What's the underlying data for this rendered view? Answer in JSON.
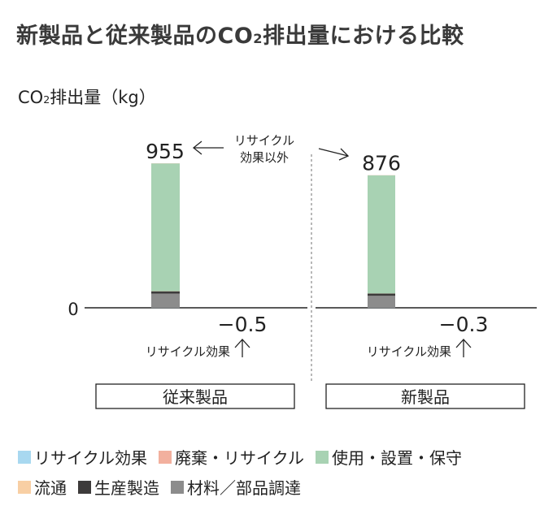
{
  "title_pre": "新製品と従来製品のCO",
  "title_sub": "2",
  "title_post": "排出量における比較",
  "unit_pre": "CO",
  "unit_sub": "2",
  "unit_post": "排出量（kg）",
  "colors": {
    "recycle": "#a8d8f0",
    "disposal": "#f2b09e",
    "use": "#a8d2b3",
    "distribution": "#f8cfa4",
    "production": "#3d3b3b",
    "materials": "#8c8c8c"
  },
  "annotations": {
    "recycle_top": [
      "リサイクル",
      "効果以外"
    ],
    "recycle_bottom": "リサイクル効果"
  },
  "chart_data": {
    "type": "bar",
    "stacked": true,
    "ylabel": "CO2排出量（kg）",
    "zero_label": "0",
    "categories": [
      "従来製品",
      "新製品"
    ],
    "series": [
      {
        "name": "リサイクル効果",
        "color_key": "recycle",
        "values": [
          -0.5,
          -0.3
        ]
      },
      {
        "name": "廃棄・リサイクル",
        "color_key": "disposal",
        "values": [
          1,
          1
        ]
      },
      {
        "name": "使用・設置・保守",
        "color_key": "use",
        "values": [
          844,
          780
        ]
      },
      {
        "name": "流通",
        "color_key": "distribution",
        "values": [
          1,
          1
        ]
      },
      {
        "name": "生産製造",
        "color_key": "production",
        "values": [
          15,
          15
        ]
      },
      {
        "name": "材料／部品調達",
        "color_key": "materials",
        "values": [
          94,
          79
        ]
      }
    ],
    "totals_above": [
      "955",
      "876"
    ],
    "totals_below": [
      "−0.5",
      "−0.3"
    ],
    "ylim": [
      -10,
      1030
    ]
  },
  "legend_rows": [
    [
      0,
      1,
      2
    ],
    [
      3,
      4,
      5
    ]
  ]
}
